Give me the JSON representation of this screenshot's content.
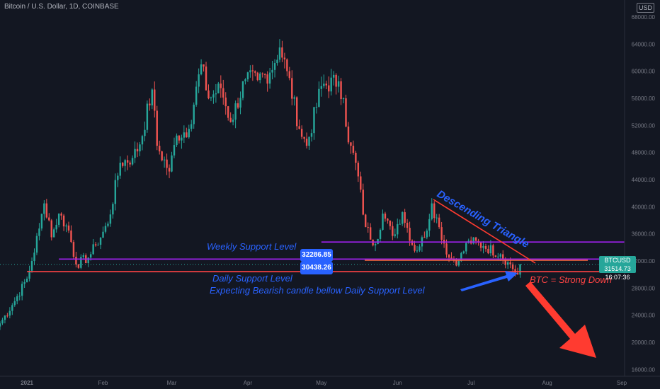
{
  "header": {
    "title": "Bitcoin / U.S. Dollar, 1D, COINBASE",
    "currency": "USD"
  },
  "ticker": {
    "symbol": "BTCUSD",
    "price": "31514.73",
    "countdown": "16:07:36"
  },
  "level_tags": {
    "weekly": "32286.85",
    "daily": "30438.26"
  },
  "annotations": {
    "weekly_label": "Weekly Support Level",
    "daily_label": "Daily Support Level",
    "expecting": "Expecting Bearish candle bellow Daily Support Level",
    "triangle": "Descending Triangle",
    "verdict": "BTC = Strong Down"
  },
  "colors": {
    "background": "#131722",
    "up": "#26a69a",
    "down": "#ef5350",
    "annotation_blue": "#2962ff",
    "support_red": "#ff4444",
    "purple": "#a020f0"
  },
  "chart_data": {
    "type": "candlestick",
    "title": "Bitcoin / U.S. Dollar, 1D, COINBASE",
    "x_range": [
      "2020-12-21",
      "2021-09-01"
    ],
    "x_ticks": [
      "2021",
      "Feb",
      "Mar",
      "Apr",
      "May",
      "Jun",
      "Jul",
      "Aug",
      "Sep"
    ],
    "y_ticks": [
      "16000.00",
      "20000.00",
      "24000.00",
      "28000.00",
      "32000.00",
      "36000.00",
      "40000.00",
      "44000.00",
      "48000.00",
      "52000.00",
      "56000.00",
      "60000.00",
      "64000.00",
      "68000.00"
    ],
    "ylim": [
      15000,
      70500
    ],
    "grid": false,
    "close": [
      {
        "d": "2020-12-21",
        "c": 22800
      },
      {
        "d": "2020-12-26",
        "c": 25500
      },
      {
        "d": "2021-01-01",
        "c": 29400
      },
      {
        "d": "2021-01-03",
        "c": 32000
      },
      {
        "d": "2021-01-06",
        "c": 36800
      },
      {
        "d": "2021-01-08",
        "c": 40500
      },
      {
        "d": "2021-01-10",
        "c": 38000
      },
      {
        "d": "2021-01-11",
        "c": 35500
      },
      {
        "d": "2021-01-14",
        "c": 39000
      },
      {
        "d": "2021-01-18",
        "c": 36500
      },
      {
        "d": "2021-01-21",
        "c": 31500
      },
      {
        "d": "2021-01-26",
        "c": 32500
      },
      {
        "d": "2021-01-29",
        "c": 34300
      },
      {
        "d": "2021-02-03",
        "c": 37500
      },
      {
        "d": "2021-02-08",
        "c": 46500
      },
      {
        "d": "2021-02-13",
        "c": 47200
      },
      {
        "d": "2021-02-16",
        "c": 49200
      },
      {
        "d": "2021-02-21",
        "c": 57300
      },
      {
        "d": "2021-02-23",
        "c": 49000
      },
      {
        "d": "2021-02-28",
        "c": 45200
      },
      {
        "d": "2021-03-03",
        "c": 50500
      },
      {
        "d": "2021-03-08",
        "c": 51500
      },
      {
        "d": "2021-03-13",
        "c": 61000
      },
      {
        "d": "2021-03-16",
        "c": 56000
      },
      {
        "d": "2021-03-21",
        "c": 57500
      },
      {
        "d": "2021-03-25",
        "c": 52500
      },
      {
        "d": "2021-03-31",
        "c": 58800
      },
      {
        "d": "2021-04-05",
        "c": 58700
      },
      {
        "d": "2021-04-10",
        "c": 59800
      },
      {
        "d": "2021-04-14",
        "c": 63500
      },
      {
        "d": "2021-04-17",
        "c": 60000
      },
      {
        "d": "2021-04-22",
        "c": 51500
      },
      {
        "d": "2021-04-25",
        "c": 49000
      },
      {
        "d": "2021-05-01",
        "c": 57800
      },
      {
        "d": "2021-05-08",
        "c": 58500
      },
      {
        "d": "2021-05-10",
        "c": 56000
      },
      {
        "d": "2021-05-12",
        "c": 49500
      },
      {
        "d": "2021-05-15",
        "c": 46500
      },
      {
        "d": "2021-05-19",
        "c": 37000
      },
      {
        "d": "2021-05-23",
        "c": 34500
      },
      {
        "d": "2021-05-26",
        "c": 39000
      },
      {
        "d": "2021-05-30",
        "c": 35700
      },
      {
        "d": "2021-06-03",
        "c": 39200
      },
      {
        "d": "2021-06-08",
        "c": 33500
      },
      {
        "d": "2021-06-12",
        "c": 35500
      },
      {
        "d": "2021-06-15",
        "c": 40500
      },
      {
        "d": "2021-06-18",
        "c": 37000
      },
      {
        "d": "2021-06-22",
        "c": 32500
      },
      {
        "d": "2021-06-26",
        "c": 32000
      },
      {
        "d": "2021-06-30",
        "c": 35000
      },
      {
        "d": "2021-07-06",
        "c": 34200
      },
      {
        "d": "2021-07-13",
        "c": 33000
      },
      {
        "d": "2021-07-16",
        "c": 31800
      },
      {
        "d": "2021-07-20",
        "c": 30000
      },
      {
        "d": "2021-07-21",
        "c": 31514.73
      }
    ],
    "levels": [
      {
        "name": "Weekly Support Level",
        "y": 32286.85,
        "from": "2021-01-14",
        "color": "#a020f0"
      },
      {
        "name": "Daily Support Level",
        "y": 30438.26,
        "from": "2021-01-01",
        "color": "#ff4444"
      },
      {
        "name": "",
        "y": 34800,
        "from": "2021-05-01",
        "color": "#a020f0"
      }
    ],
    "current_price": 31514.73
  }
}
